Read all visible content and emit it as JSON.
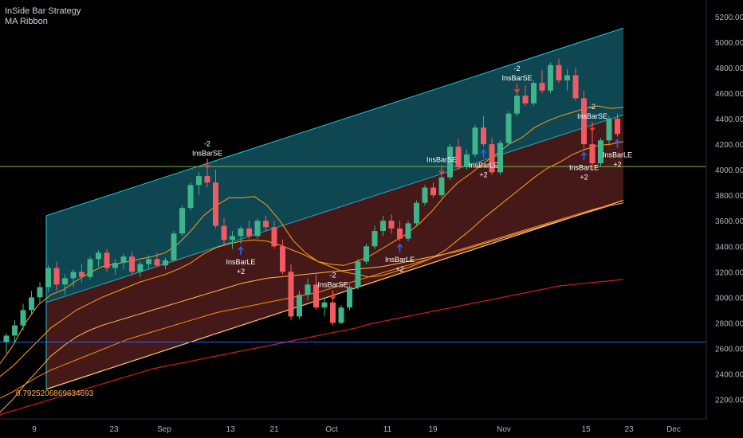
{
  "legend": {
    "strategy": "InSide Bar Strategy",
    "indicator": "MA Ribbon"
  },
  "regression_label": "0.792520686963469​3",
  "colors": {
    "background": "#000000",
    "up_candle": "#3fb389",
    "down_candle": "#f05a62",
    "upper_channel": "#0f4a55",
    "lower_channel": "#4a1a1a",
    "channel_line": "#26c6da",
    "ma_orange": "#ff9f1a",
    "ma_red": "#d41c1c",
    "hline_green": "#7cb342",
    "hline_blue": "#2962ff",
    "long_arrow": "#2962ff",
    "short_arrow": "#ff3b3b"
  },
  "chart_data": {
    "type": "candlestick",
    "y_axis": {
      "ticks": [
        2200,
        2400,
        2600,
        2800,
        3000,
        3200,
        3400,
        3600,
        3800,
        4000,
        4200,
        4400,
        4600,
        4800,
        5000,
        5200
      ],
      "tick_labels": [
        "2200.00",
        "2400.00",
        "2600.00",
        "2800.00",
        "3000.00",
        "3200.00",
        "3400.00",
        "3600.00",
        "3800.00",
        "4000.00",
        "4200.00",
        "4400.00",
        "4600.00",
        "4800.00",
        "5000.00",
        "5200.00"
      ],
      "range": [
        2060,
        5330
      ]
    },
    "x_axis": {
      "labels": [
        "9",
        "23",
        "Sep",
        "13",
        "21",
        "Oct",
        "11",
        "19",
        "Nov",
        "15",
        "23",
        "Dec"
      ]
    },
    "price_tags": [
      {
        "label": "4025.00",
        "value": 4025,
        "color": "#7cb342"
      },
      {
        "label": "2650.00",
        "value": 2650,
        "color": "#2962ff"
      }
    ],
    "channel": {
      "upper_start": 3640,
      "upper_end": 5110,
      "middle_start": 2960,
      "middle_end": 4430,
      "lower_start": 2280,
      "lower_end": 3760
    },
    "moving_averages": [
      {
        "color": "#ff9f1a",
        "values": [
          2480,
          2620,
          2800,
          2940,
          3020,
          3060,
          3130,
          3190,
          3240,
          3260,
          3280,
          3300,
          3320,
          3350,
          3420,
          3520,
          3640,
          3720,
          3780,
          3780,
          3790,
          3720,
          3600,
          3450,
          3350,
          3280,
          3260,
          3250,
          3280,
          3320,
          3380,
          3440,
          3500,
          3580,
          3680,
          3800,
          3900,
          3970,
          4050,
          4120,
          4200,
          4250,
          4330,
          4380,
          4420,
          4450,
          4480,
          4500,
          4480,
          4490
        ]
      },
      {
        "color": "#ff9f1a",
        "values": [
          2380,
          2460,
          2560,
          2660,
          2760,
          2830,
          2900,
          2950,
          3000,
          3040,
          3080,
          3120,
          3150,
          3180,
          3220,
          3270,
          3340,
          3390,
          3420,
          3440,
          3450,
          3440,
          3410,
          3370,
          3330,
          3280,
          3240,
          3200,
          3180,
          3160,
          3170,
          3200,
          3230,
          3270,
          3310,
          3370,
          3450,
          3530,
          3620,
          3700,
          3780,
          3860,
          3940,
          4010,
          4060,
          4120,
          4160,
          4190,
          4200,
          4220
        ]
      },
      {
        "color": "#ffb74d",
        "values": [
          2100,
          2200,
          2320,
          2430,
          2540,
          2620,
          2690,
          2740,
          2780,
          2810,
          2840,
          2870,
          2900,
          2930,
          2960,
          2990,
          3020,
          3050,
          3080,
          3110,
          3130,
          3150,
          3160,
          3170,
          3180,
          3190,
          3200,
          3210,
          3220,
          3230,
          3240,
          3260,
          3280,
          3300,
          3320,
          3340,
          3360,
          3390,
          3420,
          3450,
          3480,
          3510,
          3540,
          3570,
          3600,
          3630,
          3660,
          3690,
          3720,
          3740
        ]
      },
      {
        "color": "#ff8a1a",
        "values": [
          2210,
          2260,
          2320,
          2380,
          2430,
          2470,
          2510,
          2550,
          2590,
          2630,
          2670,
          2700,
          2730,
          2760,
          2790,
          2820,
          2850,
          2880,
          2900,
          2920,
          2940,
          2960,
          2980,
          3000,
          3020,
          3040,
          3070,
          3100,
          3130,
          3160,
          3190,
          3220,
          3250,
          3280,
          3310,
          3340,
          3370,
          3400,
          3430,
          3460,
          3490,
          3520,
          3550,
          3580,
          3610,
          3640,
          3670,
          3700,
          3720,
          3740
        ]
      },
      {
        "color": "#d41c1c",
        "values": [
          2080,
          2110,
          2140,
          2170,
          2200,
          2230,
          2260,
          2290,
          2320,
          2350,
          2380,
          2410,
          2440,
          2460,
          2480,
          2500,
          2520,
          2540,
          2560,
          2580,
          2600,
          2620,
          2640,
          2660,
          2680,
          2700,
          2720,
          2740,
          2760,
          2790,
          2810,
          2830,
          2850,
          2870,
          2890,
          2910,
          2930,
          2950,
          2970,
          2990,
          3010,
          3030,
          3050,
          3070,
          3090,
          3100,
          3110,
          3120,
          3130,
          3140
        ]
      }
    ],
    "candles": [
      [
        2650,
        2720,
        2560,
        2700
      ],
      [
        2700,
        2820,
        2640,
        2780
      ],
      [
        2780,
        2950,
        2740,
        2900
      ],
      [
        2900,
        3050,
        2860,
        3000
      ],
      [
        3000,
        3120,
        2950,
        3080
      ],
      [
        3080,
        3250,
        3040,
        3230
      ],
      [
        3230,
        3280,
        3050,
        3100
      ],
      [
        3100,
        3180,
        3020,
        3150
      ],
      [
        3150,
        3220,
        3080,
        3200
      ],
      [
        3200,
        3260,
        3120,
        3160
      ],
      [
        3160,
        3320,
        3140,
        3300
      ],
      [
        3300,
        3370,
        3240,
        3350
      ],
      [
        3350,
        3380,
        3200,
        3230
      ],
      [
        3230,
        3300,
        3180,
        3270
      ],
      [
        3270,
        3340,
        3220,
        3320
      ],
      [
        3320,
        3360,
        3180,
        3200
      ],
      [
        3200,
        3280,
        3160,
        3260
      ],
      [
        3260,
        3330,
        3220,
        3300
      ],
      [
        3300,
        3350,
        3240,
        3250
      ],
      [
        3250,
        3310,
        3220,
        3290
      ],
      [
        3290,
        3520,
        3280,
        3500
      ],
      [
        3500,
        3720,
        3480,
        3700
      ],
      [
        3700,
        3900,
        3680,
        3880
      ],
      [
        3880,
        3980,
        3800,
        3950
      ],
      [
        3950,
        4010,
        3860,
        3900
      ],
      [
        3900,
        4000,
        3540,
        3560
      ],
      [
        3560,
        3620,
        3400,
        3450
      ],
      [
        3450,
        3520,
        3380,
        3480
      ],
      [
        3480,
        3560,
        3420,
        3540
      ],
      [
        3540,
        3600,
        3460,
        3480
      ],
      [
        3480,
        3620,
        3460,
        3600
      ],
      [
        3600,
        3640,
        3520,
        3550
      ],
      [
        3550,
        3600,
        3380,
        3400
      ],
      [
        3400,
        3450,
        3180,
        3200
      ],
      [
        3200,
        3260,
        2820,
        2850
      ],
      [
        2850,
        3050,
        2830,
        3020
      ],
      [
        3020,
        3150,
        2980,
        3100
      ],
      [
        3100,
        3180,
        2900,
        2920
      ],
      [
        2920,
        3000,
        2850,
        2960
      ],
      [
        2960,
        2980,
        2780,
        2800
      ],
      [
        2800,
        2940,
        2790,
        2920
      ],
      [
        2920,
        3100,
        2900,
        3080
      ],
      [
        3080,
        3300,
        3060,
        3280
      ],
      [
        3280,
        3420,
        3260,
        3400
      ],
      [
        3400,
        3560,
        3380,
        3520
      ],
      [
        3520,
        3640,
        3480,
        3600
      ],
      [
        3600,
        3650,
        3500,
        3540
      ],
      [
        3540,
        3600,
        3440,
        3460
      ],
      [
        3460,
        3600,
        3440,
        3580
      ],
      [
        3580,
        3760,
        3560,
        3740
      ],
      [
        3740,
        3880,
        3720,
        3860
      ],
      [
        3860,
        3900,
        3780,
        3800
      ],
      [
        3800,
        3960,
        3780,
        3940
      ],
      [
        3940,
        4200,
        3920,
        4180
      ],
      [
        4180,
        4240,
        4000,
        4020
      ],
      [
        4020,
        4160,
        4000,
        4120
      ],
      [
        4120,
        4350,
        4100,
        4330
      ],
      [
        4330,
        4420,
        4180,
        4200
      ],
      [
        4200,
        4250,
        3960,
        3980
      ],
      [
        3980,
        4230,
        3960,
        4210
      ],
      [
        4210,
        4460,
        4190,
        4440
      ],
      [
        4440,
        4600,
        4420,
        4580
      ],
      [
        4580,
        4660,
        4500,
        4520
      ],
      [
        4520,
        4700,
        4500,
        4680
      ],
      [
        4680,
        4780,
        4600,
        4620
      ],
      [
        4620,
        4840,
        4600,
        4820
      ],
      [
        4820,
        4870,
        4680,
        4700
      ],
      [
        4700,
        4790,
        4620,
        4740
      ],
      [
        4740,
        4800,
        4540,
        4560
      ],
      [
        4560,
        4620,
        4160,
        4200
      ],
      [
        4200,
        4300,
        4000,
        4050
      ],
      [
        4050,
        4250,
        4020,
        4230
      ],
      [
        4230,
        4420,
        4200,
        4400
      ],
      [
        4400,
        4440,
        4260,
        4280
      ]
    ],
    "signals": [
      {
        "type": "short",
        "label": "InsBarSE",
        "qty": "-2",
        "candle": 24
      },
      {
        "type": "long",
        "label": "InsBarLE",
        "qty": "+2",
        "candle": 28
      },
      {
        "type": "short",
        "label": "InsBarSE",
        "qty": "-2",
        "candle": 39
      },
      {
        "type": "long",
        "label": "InsBarLE",
        "qty": "+2",
        "candle": 47
      },
      {
        "type": "short",
        "label": "InsBarSE",
        "qty": "",
        "candle": 52
      },
      {
        "type": "long",
        "label": "InsBarLE",
        "qty": "+2",
        "candle": 57
      },
      {
        "type": "short",
        "label": "InsBarSE",
        "qty": "-2",
        "candle": 61
      },
      {
        "type": "long",
        "label": "InsBarLE",
        "qty": "+2",
        "candle": 69
      },
      {
        "type": "short",
        "label": "InsBarSE",
        "qty": "-2",
        "candle": 70
      },
      {
        "type": "long",
        "label": "InsBarLE",
        "qty": "+2",
        "candle": 73
      }
    ]
  }
}
